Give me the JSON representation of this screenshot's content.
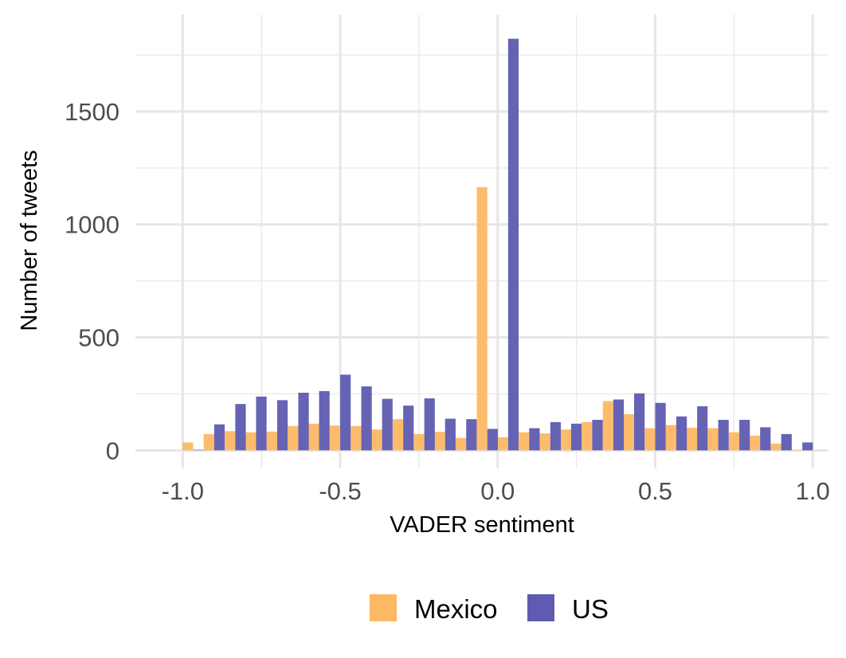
{
  "chart_data": {
    "type": "bar",
    "xlabel": "VADER sentiment",
    "ylabel": "Number of tweets",
    "xlim": [
      -1.15,
      1.05
    ],
    "ylim": [
      -80,
      1930
    ],
    "x_ticks": [
      -1.0,
      -0.5,
      0.0,
      0.5,
      1.0
    ],
    "x_tick_labels": [
      "-1.0",
      "-0.5",
      "0.0",
      "0.5",
      "1.0"
    ],
    "x_minor_ticks": [
      -0.75,
      -0.25,
      0.25,
      0.75
    ],
    "y_ticks": [
      0,
      500,
      1000,
      1500
    ],
    "y_tick_labels": [
      "0",
      "500",
      "1000",
      "1500"
    ],
    "y_minor_ticks": [
      250,
      750,
      1250,
      1750
    ],
    "grid": true,
    "legend_position": "bottom",
    "bin_width": 0.0667,
    "bin_centers": [
      -0.967,
      -0.9,
      -0.833,
      -0.767,
      -0.7,
      -0.633,
      -0.567,
      -0.5,
      -0.433,
      -0.367,
      -0.3,
      -0.233,
      -0.167,
      -0.1,
      -0.033,
      0.033,
      0.1,
      0.167,
      0.233,
      0.3,
      0.367,
      0.433,
      0.5,
      0.567,
      0.633,
      0.7,
      0.767,
      0.833,
      0.9,
      0.967
    ],
    "series": [
      {
        "name": "Mexico",
        "color": "#FDB863",
        "values": [
          35,
          72,
          85,
          80,
          83,
          108,
          118,
          110,
          108,
          92,
          138,
          72,
          82,
          55,
          1165,
          58,
          80,
          75,
          92,
          125,
          218,
          160,
          98,
          112,
          100,
          98,
          80,
          65,
          30,
          0
        ]
      },
      {
        "name": "US",
        "color": "#5E5BB0",
        "values": [
          2,
          115,
          205,
          238,
          222,
          255,
          262,
          335,
          283,
          228,
          198,
          230,
          140,
          138,
          95,
          1822,
          98,
          125,
          118,
          135,
          225,
          252,
          210,
          150,
          195,
          135,
          135,
          102,
          72,
          35
        ]
      }
    ]
  }
}
